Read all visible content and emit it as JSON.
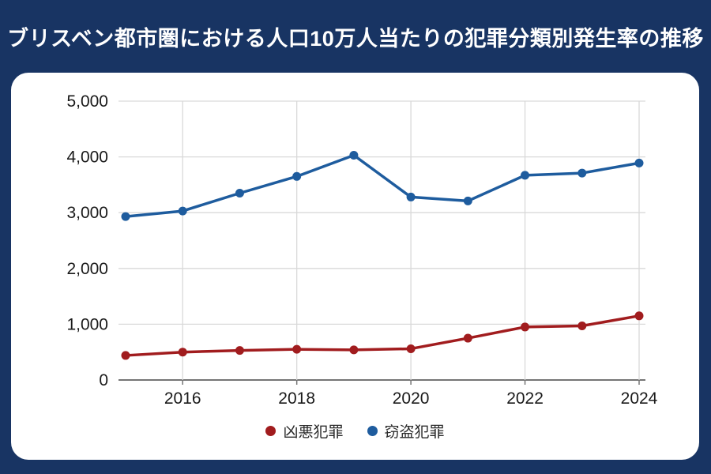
{
  "colors": {
    "background": "#183463",
    "card": "#ffffff",
    "title_text": "#ffffff",
    "grid": "#d9d9d9",
    "axis": "#757575",
    "label": "#1a1a1a"
  },
  "chart_data": {
    "type": "line",
    "title": "ブリスベン都市圏における人口10万人当たりの犯罪分類別発生率の推移",
    "x": [
      2015,
      2016,
      2017,
      2018,
      2019,
      2020,
      2021,
      2022,
      2023,
      2024
    ],
    "series": [
      {
        "key": "violent-crime",
        "name": "凶悪犯罪",
        "color": "#a11c1e",
        "values": [
          440,
          500,
          530,
          550,
          540,
          560,
          750,
          950,
          970,
          1150
        ]
      },
      {
        "key": "theft-crime",
        "name": "窃盗犯罪",
        "color": "#1e5c9e",
        "values": [
          2930,
          3030,
          3350,
          3650,
          4030,
          3280,
          3210,
          3670,
          3710,
          3890
        ]
      }
    ],
    "xlim": [
      2015,
      2024
    ],
    "ylim": [
      0,
      5000
    ],
    "x_ticks": [
      {
        "label": "2016",
        "value": 2016
      },
      {
        "label": "2018",
        "value": 2018
      },
      {
        "label": "2020",
        "value": 2020
      },
      {
        "label": "2022",
        "value": 2022
      },
      {
        "label": "2024",
        "value": 2024
      }
    ],
    "y_ticks": [
      {
        "label": "0",
        "value": 0
      },
      {
        "label": "1,000",
        "value": 1000
      },
      {
        "label": "2,000",
        "value": 2000
      },
      {
        "label": "3,000",
        "value": 3000
      },
      {
        "label": "4,000",
        "value": 4000
      },
      {
        "label": "5,000",
        "value": 5000
      }
    ],
    "grid": true,
    "legend_position": "bottom"
  }
}
